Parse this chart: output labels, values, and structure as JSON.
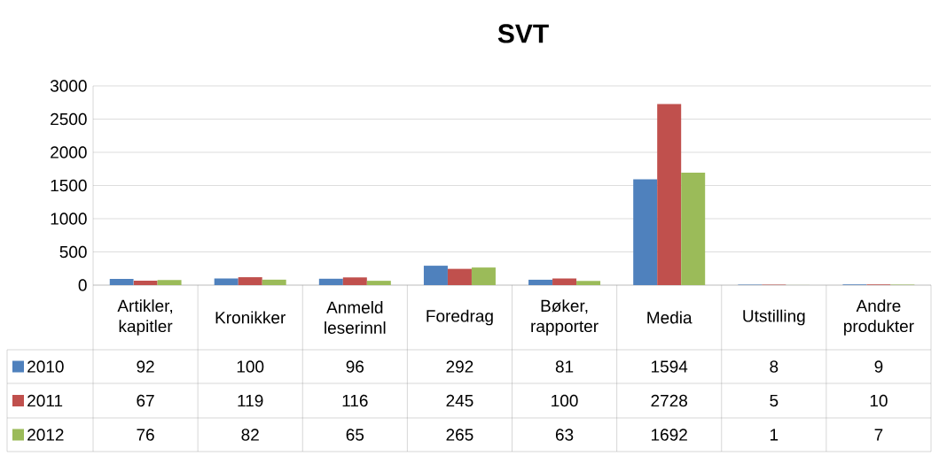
{
  "chart_data": {
    "type": "bar",
    "title": "SVT",
    "categories": [
      "Artikler, kapitler",
      "Kronikker",
      "Anmeld leserinnl",
      "Foredrag",
      "Bøker, rapporter",
      "Media",
      "Utstilling",
      "Andre produkter"
    ],
    "series": [
      {
        "name": "2010",
        "color": "#4f81bd",
        "values": [
          92,
          100,
          96,
          292,
          81,
          1594,
          8,
          9
        ]
      },
      {
        "name": "2011",
        "color": "#c0504d",
        "values": [
          67,
          119,
          116,
          245,
          100,
          2728,
          5,
          10
        ]
      },
      {
        "name": "2012",
        "color": "#9bbb59",
        "values": [
          76,
          82,
          65,
          265,
          63,
          1692,
          1,
          7
        ]
      }
    ],
    "ylim": [
      0,
      3000
    ],
    "yticks": [
      0,
      500,
      1000,
      1500,
      2000,
      2500,
      3000
    ],
    "grid": "y",
    "legend": "bottom",
    "data_labels": true
  }
}
